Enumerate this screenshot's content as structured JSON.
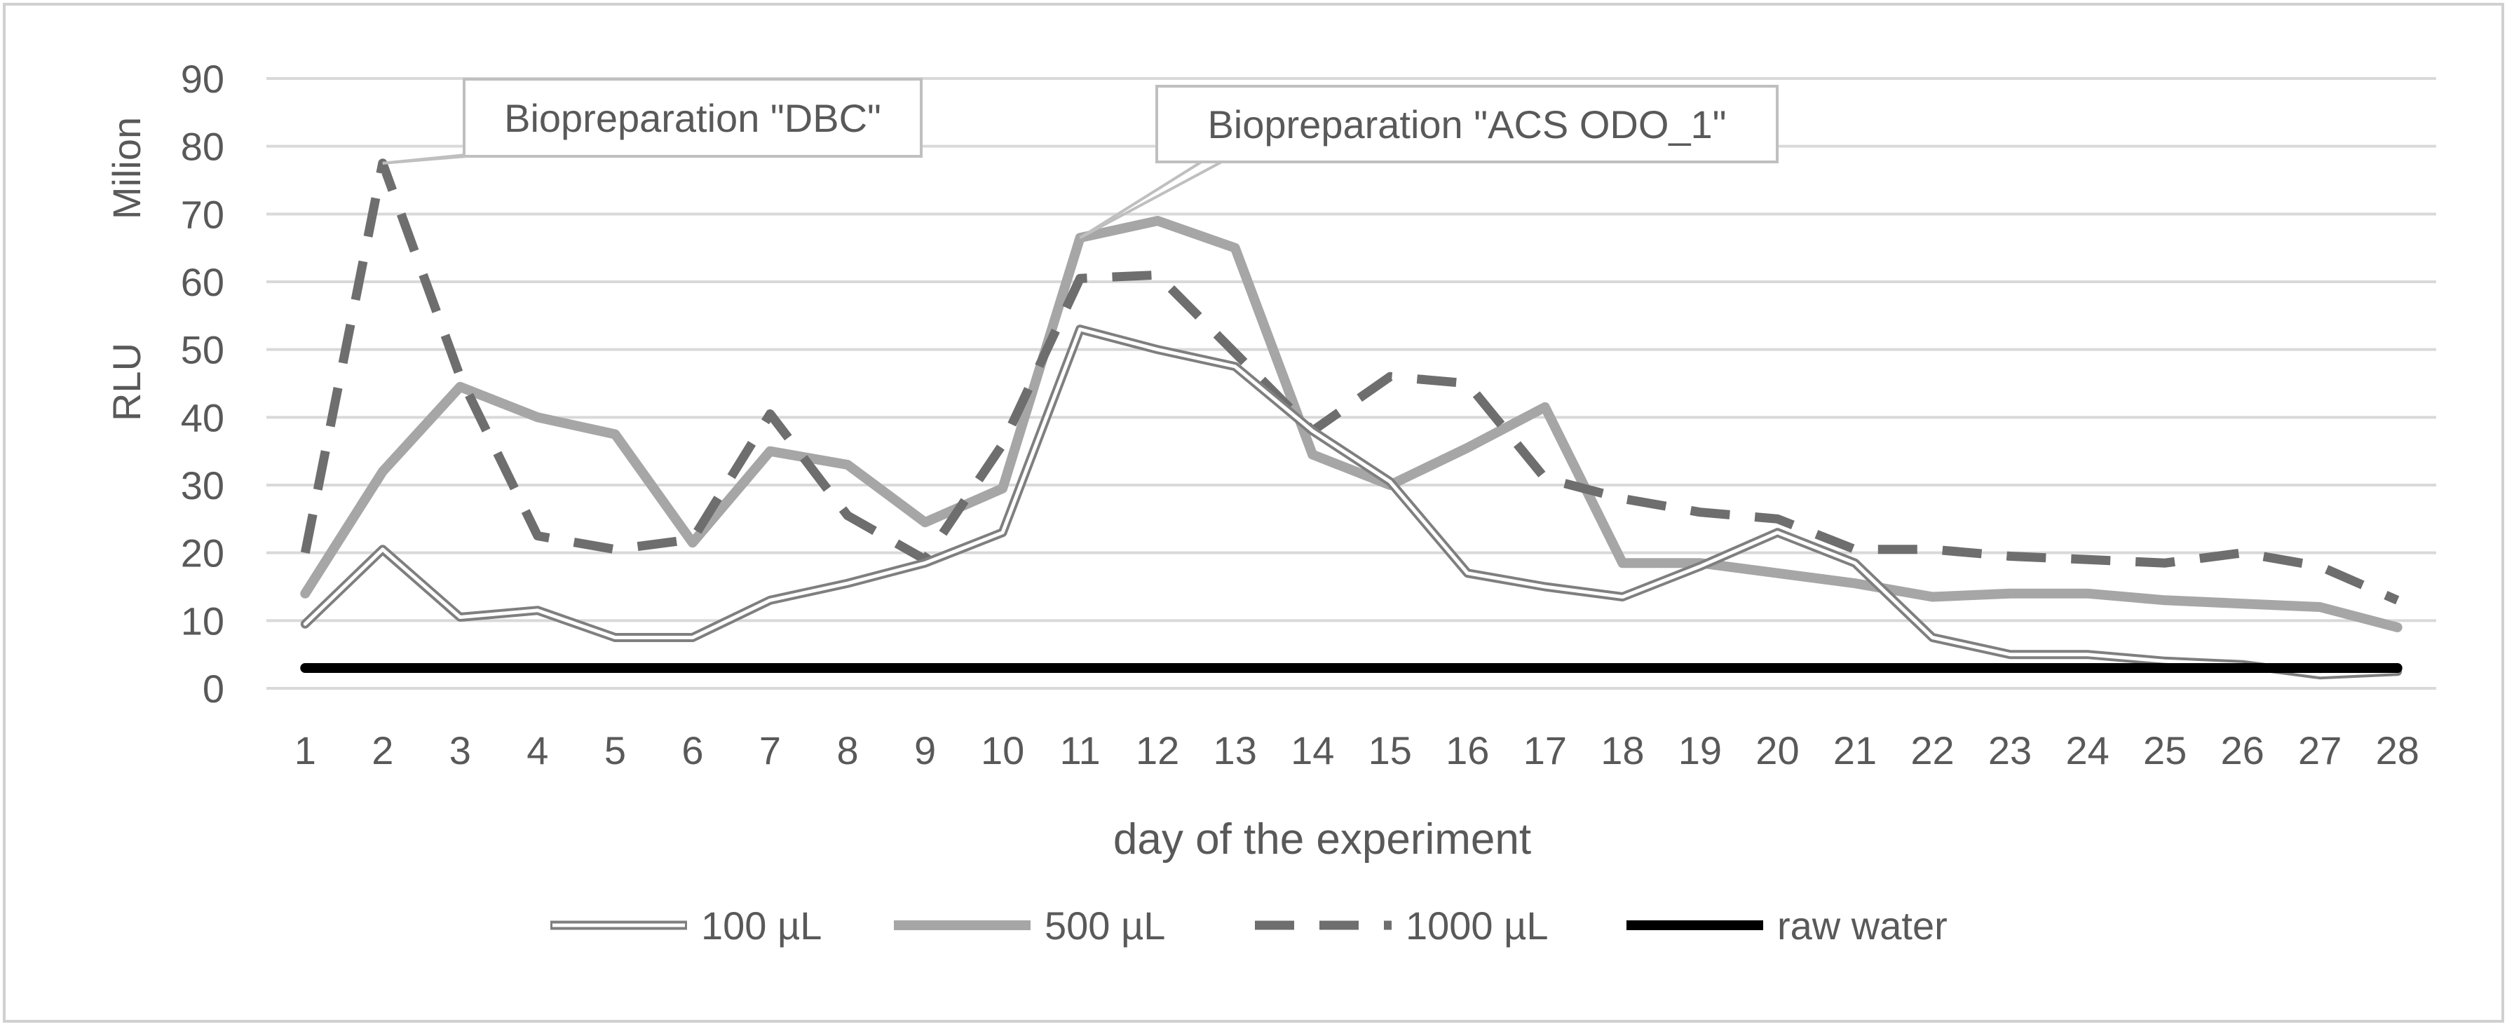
{
  "chart_data": {
    "type": "line",
    "title": "",
    "xlabel": "day of the experiment",
    "ylabel": "RLU",
    "yunit": "Milion",
    "ylim": [
      0,
      90
    ],
    "yticks": [
      0,
      10,
      20,
      30,
      40,
      50,
      60,
      70,
      80,
      90
    ],
    "grid": true,
    "legend_position": "bottom",
    "categories": [
      "1",
      "2",
      "3",
      "4",
      "5",
      "6",
      "7",
      "8",
      "9",
      "10",
      "11",
      "12",
      "13",
      "14",
      "15",
      "16",
      "17",
      "18",
      "19",
      "20",
      "21",
      "22",
      "23",
      "24",
      "25",
      "26",
      "27",
      "28"
    ],
    "series": [
      {
        "name": "100 µL",
        "style": "double-line",
        "color": "#7f7f7f",
        "values": [
          9.5,
          20.5,
          10.5,
          11.5,
          7.5,
          7.5,
          13,
          15.5,
          18.5,
          23,
          53,
          50,
          47.5,
          38,
          30.5,
          17,
          15,
          13.5,
          18,
          23,
          18.5,
          7.5,
          5,
          5,
          4,
          3.5,
          2,
          2.5
        ]
      },
      {
        "name": "500 µL",
        "style": "thick-solid",
        "color": "#a6a6a6",
        "values": [
          14,
          32,
          44.5,
          40,
          37.5,
          21.5,
          35,
          33,
          24.5,
          29.5,
          66.5,
          69,
          65,
          34.5,
          30,
          35.5,
          41.5,
          18.5,
          18.5,
          17,
          15.5,
          13.5,
          14,
          14,
          13,
          12.5,
          12,
          9
        ]
      },
      {
        "name": "1000 µL",
        "style": "dashed",
        "color": "#6e6e6e",
        "values": [
          20,
          77.5,
          46,
          22.5,
          20.5,
          22,
          40.5,
          25.5,
          19,
          36,
          60.5,
          61,
          49.5,
          38,
          46,
          45,
          31,
          28,
          26,
          25,
          20.5,
          20.5,
          19.5,
          19,
          18.5,
          20,
          18,
          13
        ]
      },
      {
        "name": "raw water",
        "style": "thick-solid",
        "color": "#000000",
        "values": [
          3,
          3,
          3,
          3,
          3,
          3,
          3,
          3,
          3,
          3,
          3,
          3,
          3,
          3,
          3,
          3,
          3,
          3,
          3,
          3,
          3,
          3,
          3,
          3,
          3,
          3,
          3,
          3
        ]
      }
    ],
    "annotations": [
      {
        "text": "Biopreparation \"DBC\"",
        "category_index": 1,
        "value": 77.5
      },
      {
        "text": "Biopreparation \"ACS ODO_1\"",
        "category_index": 10,
        "value": 66.5
      }
    ]
  }
}
